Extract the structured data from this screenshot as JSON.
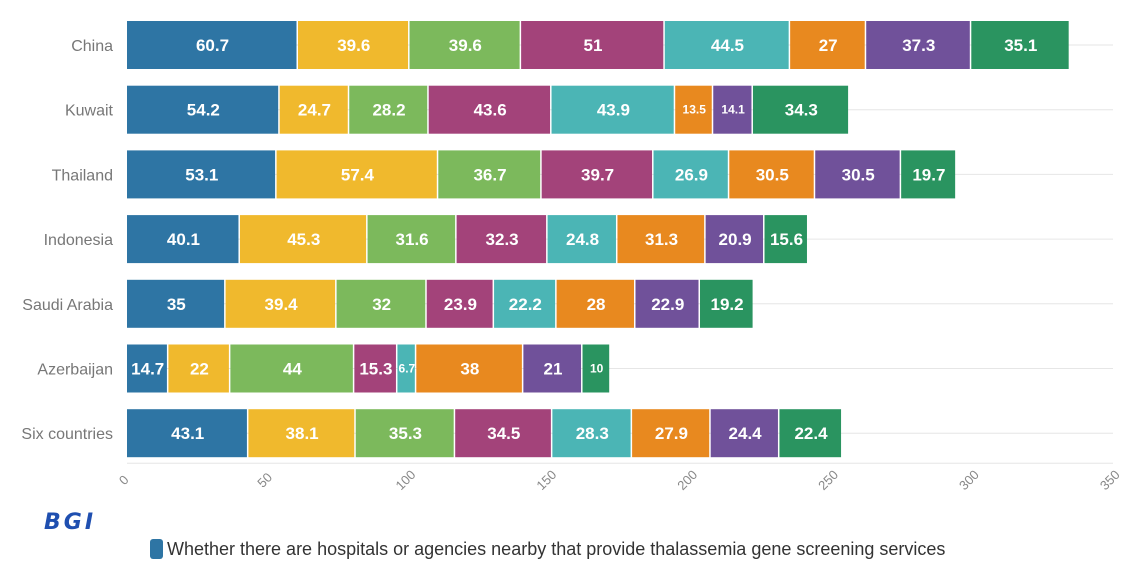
{
  "brand": "BGI",
  "chart_data": {
    "type": "bar",
    "orientation": "horizontal",
    "stacked": true,
    "categories": [
      "China",
      "Kuwait",
      "Thailand",
      "Indonesia",
      "Saudi Arabia",
      "Azerbaijan",
      "Six countries"
    ],
    "xlim": [
      0,
      350
    ],
    "xticks": [
      0,
      50,
      100,
      150,
      200,
      250,
      300,
      350
    ],
    "grid": true,
    "legend_position": "bottom",
    "series": [
      {
        "name": "Whether there are hospitals or agencies nearby that provide thalassemia gene screening services",
        "color": "#2e75a4",
        "values": [
          60.7,
          54.2,
          53.1,
          40.1,
          35,
          14.7,
          43.1
        ]
      },
      {
        "color": "#f0b92d",
        "values": [
          39.6,
          24.7,
          57.4,
          45.3,
          39.4,
          22,
          38.1
        ]
      },
      {
        "color": "#7cb95c",
        "values": [
          39.6,
          28.2,
          36.7,
          31.6,
          32,
          44,
          35.3
        ]
      },
      {
        "color": "#a3437a",
        "values": [
          51,
          43.6,
          39.7,
          32.3,
          23.9,
          15.3,
          34.5
        ]
      },
      {
        "color": "#4bb5b5",
        "values": [
          44.5,
          43.9,
          26.9,
          24.8,
          22.2,
          6.7,
          28.3
        ]
      },
      {
        "color": "#e8891f",
        "values": [
          27,
          13.5,
          30.5,
          31.3,
          28,
          38,
          27.9
        ]
      },
      {
        "color": "#70519a",
        "values": [
          37.3,
          14.1,
          30.5,
          20.9,
          22.9,
          21,
          24.4
        ]
      },
      {
        "color": "#2a9460",
        "values": [
          35.1,
          34.3,
          19.7,
          15.6,
          19.2,
          10,
          22.4
        ]
      }
    ]
  }
}
